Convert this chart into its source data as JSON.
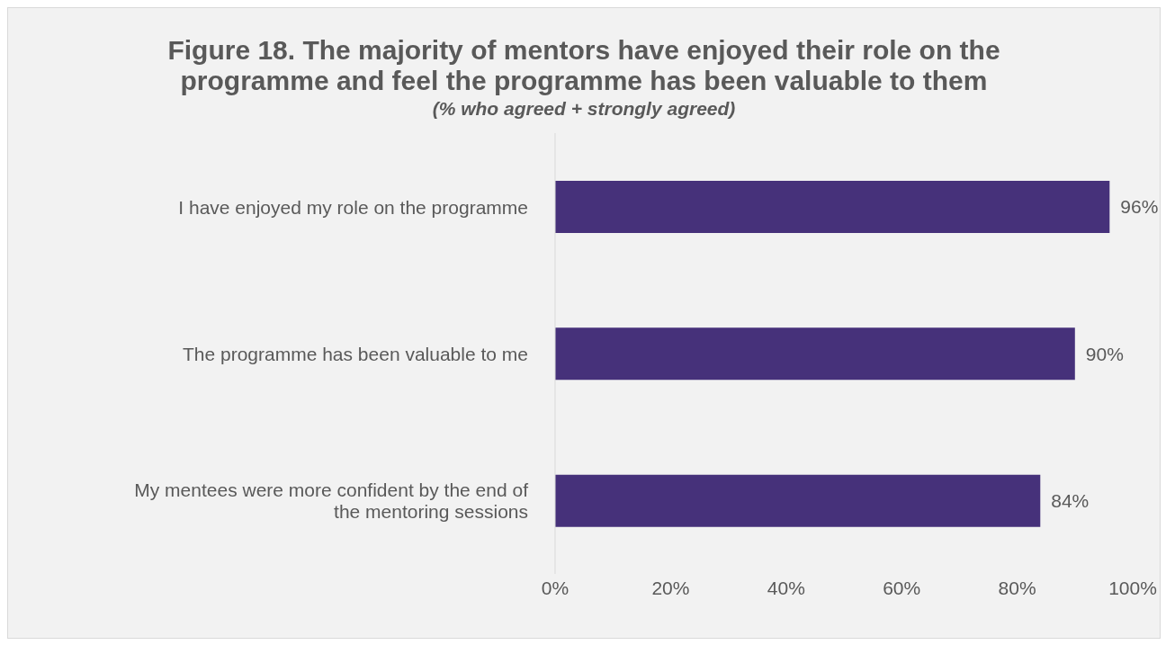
{
  "chart_data": {
    "type": "bar",
    "orientation": "horizontal",
    "title": "Figure 18. The majority of mentors have enjoyed their role on the programme and feel the programme has been valuable to them",
    "subtitle": "(% who agreed + strongly agreed)",
    "categories": [
      "I have enjoyed my role on the programme",
      "The programme has been valuable to me",
      "My mentees were more confident by the end of the mentoring sessions"
    ],
    "values": [
      96,
      90,
      84
    ],
    "color": "#46317a",
    "value_labels": [
      "96%",
      "90%",
      "84%"
    ],
    "xlim": [
      0,
      100
    ],
    "xticks": [
      {
        "value": 0,
        "label": "0%"
      },
      {
        "value": 20,
        "label": "20%"
      },
      {
        "value": 40,
        "label": "40%"
      },
      {
        "value": 60,
        "label": "60%"
      },
      {
        "value": 80,
        "label": "80%"
      },
      {
        "value": 100,
        "label": "100%"
      }
    ],
    "grid": false,
    "legend": false
  }
}
